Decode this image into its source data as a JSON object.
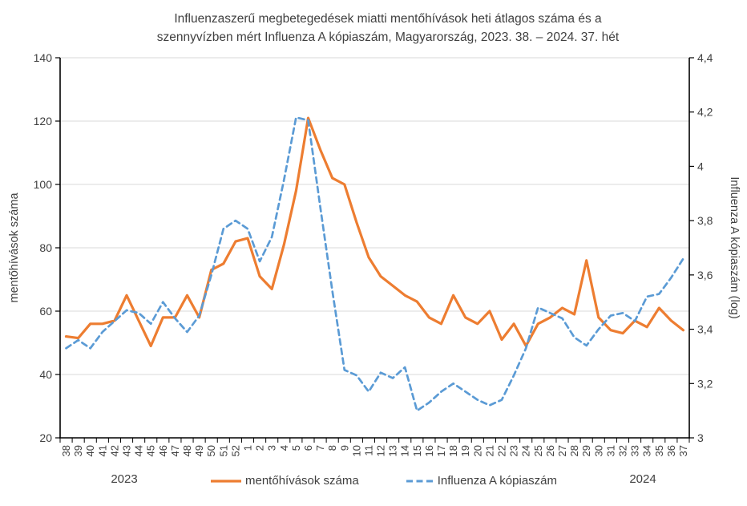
{
  "title": {
    "line1": "Influenzaszerű megbetegedések miatti mentőhívások heti átlagos száma és a",
    "line2": "szennyvízben mért Influenza A kópiaszám, Magyarország, 2023. 38. – 2024. 37. hét"
  },
  "chart_data": {
    "type": "line",
    "categories": [
      "38",
      "39",
      "40",
      "41",
      "42",
      "43",
      "44",
      "45",
      "46",
      "47",
      "48",
      "49",
      "50",
      "51",
      "52",
      "1",
      "2",
      "3",
      "4",
      "5",
      "6",
      "7",
      "8",
      "9",
      "10",
      "11",
      "12",
      "13",
      "14",
      "15",
      "16",
      "17",
      "18",
      "19",
      "20",
      "21",
      "22",
      "23",
      "24",
      "25",
      "26",
      "27",
      "28",
      "29",
      "30",
      "31",
      "32",
      "33",
      "34",
      "35",
      "36",
      "37"
    ],
    "series": [
      {
        "name": "mentőhívások száma",
        "axis": "left",
        "color": "#ED7D31",
        "style": "solid",
        "values": [
          52,
          51.5,
          56,
          56,
          57,
          65,
          57,
          49,
          58,
          58,
          65,
          58,
          73,
          75,
          82,
          83,
          71,
          67,
          81,
          98,
          121,
          111,
          102,
          100,
          88,
          77,
          71,
          68,
          65,
          63,
          58,
          56,
          65,
          58,
          56,
          60,
          51,
          56,
          49,
          56,
          58,
          61,
          59,
          76,
          58,
          54,
          53,
          57,
          55,
          61,
          57,
          54
        ]
      },
      {
        "name": "Influenza A kópiaszám",
        "axis": "right",
        "color": "#5B9BD5",
        "style": "dashed",
        "values": [
          3.33,
          3.36,
          3.33,
          3.39,
          3.43,
          3.47,
          3.46,
          3.42,
          3.5,
          3.44,
          3.39,
          3.45,
          3.6,
          3.77,
          3.8,
          3.77,
          3.65,
          3.74,
          3.95,
          4.18,
          4.17,
          3.85,
          3.54,
          3.25,
          3.23,
          3.17,
          3.24,
          3.22,
          3.26,
          3.1,
          3.13,
          3.17,
          3.2,
          3.17,
          3.14,
          3.12,
          3.14,
          3.23,
          3.33,
          3.48,
          3.46,
          3.44,
          3.37,
          3.34,
          3.4,
          3.45,
          3.46,
          3.43,
          3.52,
          3.53,
          3.59,
          3.66
        ]
      }
    ],
    "left_axis": {
      "label": "mentőhívások száma",
      "min": 20,
      "max": 140,
      "step": 20,
      "tick_labels": [
        "20",
        "40",
        "60",
        "80",
        "100",
        "120",
        "140"
      ]
    },
    "right_axis": {
      "label": "Influenza A kópiaszám (log)",
      "min": 3,
      "max": 4.4,
      "step": 0.2,
      "tick_labels": [
        "3",
        "3,2",
        "3,4",
        "3,6",
        "3,8",
        "4",
        "4,2",
        "4,4"
      ]
    },
    "x_axis": {
      "year_left": "2023",
      "year_right": "2024"
    },
    "grid": true,
    "grid_color": "#D9D9D9",
    "axis_color": "#000000",
    "label_color": "#404040",
    "legend_position": "bottom"
  }
}
